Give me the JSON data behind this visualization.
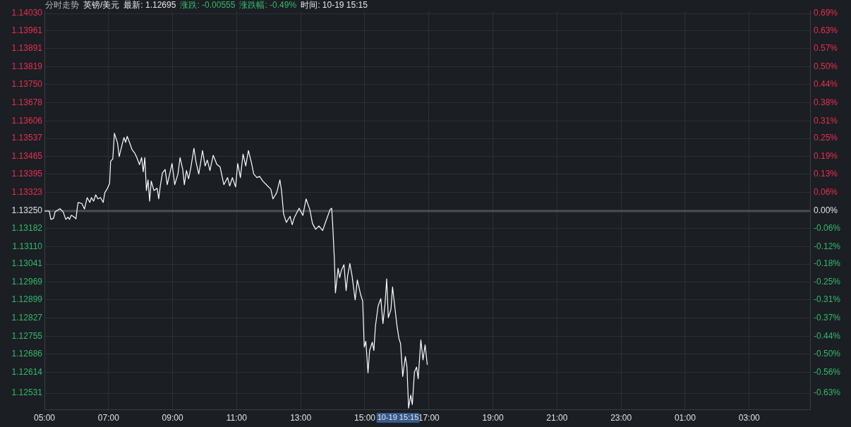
{
  "chart_data": {
    "type": "line",
    "title": "分时走势",
    "subtitle": "英镑/美元",
    "annotations": [
      "最新: 1.12695",
      "涨跌: -0.00555",
      "涨跌幅: -0.49%",
      "时间: 10-19 15:15",
      "10-19 15:15"
    ],
    "x": [
      "--10-19T05:00",
      "--10-19T05:09",
      "--10-19T05:12",
      "--10-19T05:17",
      "--10-19T05:20",
      "--10-19T05:29",
      "--10-19T05:35",
      "--10-19T05:40",
      "--10-19T05:44",
      "--10-19T05:47",
      "--10-19T05:50",
      "--10-19T05:54",
      "--10-19T05:59",
      "--10-19T06:01",
      "--10-19T06:03",
      "--10-19T06:10",
      "--10-19T06:15",
      "--10-19T06:20",
      "--10-19T06:25",
      "--10-19T06:28",
      "--10-19T06:32",
      "--10-19T06:36",
      "--10-19T06:40",
      "--10-19T06:45",
      "--10-19T06:50",
      "--10-19T06:53",
      "--10-19T06:58",
      "--10-19T07:02",
      "--10-19T07:04",
      "--10-19T07:08",
      "--10-19T07:11",
      "--10-19T07:15",
      "--10-19T07:17",
      "--10-19T07:20",
      "--10-19T07:26",
      "--10-19T07:29",
      "--10-19T07:32",
      "--10-19T07:35",
      "--10-19T07:40",
      "--10-19T07:44",
      "--10-19T07:49",
      "--10-19T07:53",
      "--10-19T07:58",
      "--10-19T08:02",
      "--10-19T08:05",
      "--10-19T08:08",
      "--10-19T08:11",
      "--10-19T08:14",
      "--10-19T08:17",
      "--10-19T08:20",
      "--10-19T08:25",
      "--10-19T08:31",
      "--10-19T08:34",
      "--10-19T08:37",
      "--10-19T08:41",
      "--10-19T08:46",
      "--10-19T08:50",
      "--10-19T08:55",
      "--10-19T08:59",
      "--10-19T09:04",
      "--10-19T09:10",
      "--10-19T09:14",
      "--10-19T09:19",
      "--10-19T09:22",
      "--10-19T09:26",
      "--10-19T09:30",
      "--10-19T09:34",
      "--10-19T09:40",
      "--10-19T09:44",
      "--10-19T09:49",
      "--10-19T09:53",
      "--10-19T09:56",
      "--10-19T10:01",
      "--10-19T10:05",
      "--10-19T10:10",
      "--10-19T10:16",
      "--10-19T10:23",
      "--10-19T10:29",
      "--10-19T10:36",
      "--10-19T10:43",
      "--10-19T10:47",
      "--10-19T10:52",
      "--10-19T10:58",
      "--10-19T11:02",
      "--10-19T11:07",
      "--10-19T11:12",
      "--10-19T11:17",
      "--10-19T11:22",
      "--10-19T11:28",
      "--10-19T11:32",
      "--10-19T11:38",
      "--10-19T11:43",
      "--10-19T11:49",
      "--10-19T11:58",
      "--10-19T12:04",
      "--10-19T12:08",
      "--10-19T12:15",
      "--10-19T12:21",
      "--10-19T12:24",
      "--10-19T12:28",
      "--10-19T12:33",
      "--10-19T12:40",
      "--10-19T12:44",
      "--10-19T12:48",
      "--10-19T12:57",
      "--10-19T13:04",
      "--10-19T13:10",
      "--10-19T13:17",
      "--10-19T13:22",
      "--10-19T13:28",
      "--10-19T13:34",
      "--10-19T13:41",
      "--10-19T13:48",
      "--10-19T13:55",
      "--10-19T13:58",
      "--10-19T14:00",
      "--10-19T14:03",
      "--10-19T14:05",
      "--10-19T14:10",
      "--10-19T14:13",
      "--10-19T14:16",
      "--10-19T14:21",
      "--10-19T14:25",
      "--10-19T14:28",
      "--10-19T14:32",
      "--10-19T14:36",
      "--10-19T14:42",
      "--10-19T14:46",
      "--10-19T14:52",
      "--10-19T14:56",
      "--10-19T14:59",
      "--10-19T15:02",
      "--10-19T15:06",
      "--10-19T15:09",
      "--10-19T15:14",
      "--10-19T15:17",
      "--10-19T15:20",
      "--10-19T15:25",
      "--10-19T15:30",
      "--10-19T15:34",
      "--10-19T15:38",
      "--10-19T15:41",
      "--10-19T15:44",
      "--10-19T15:49",
      "--10-19T15:52",
      "--10-19T15:56",
      "--10-19T16:00",
      "--10-19T16:04",
      "--10-19T16:07",
      "--10-19T16:11",
      "--10-19T16:16",
      "--10-19T16:19",
      "--10-19T16:22",
      "--10-19T16:26",
      "--10-19T16:29",
      "--10-19T16:33",
      "--10-19T16:37",
      "--10-19T16:40",
      "--10-19T16:45",
      "--10-19T16:49",
      "--10-19T16:53",
      "--10-19T16:57"
    ],
    "series": [
      {
        "color": "#ffffff",
        "values": [
          1.1325,
          1.1325,
          1.13217,
          1.13221,
          1.13247,
          1.13259,
          1.13247,
          1.13217,
          1.13226,
          1.13217,
          1.13233,
          1.13229,
          1.13219,
          1.13255,
          1.13284,
          1.1328,
          1.13258,
          1.13303,
          1.13284,
          1.13303,
          1.13289,
          1.13314,
          1.13298,
          1.13303,
          1.13284,
          1.13322,
          1.1334,
          1.13359,
          1.13447,
          1.13456,
          1.13557,
          1.13531,
          1.13517,
          1.13465,
          1.13517,
          1.1354,
          1.13521,
          1.13545,
          1.13517,
          1.13493,
          1.13479,
          1.13461,
          1.13433,
          1.13461,
          1.13405,
          1.13461,
          1.13331,
          1.13373,
          1.13289,
          1.13368,
          1.13331,
          1.1334,
          1.13298,
          1.13349,
          1.134,
          1.13414,
          1.13354,
          1.134,
          1.13438,
          1.13354,
          1.13396,
          1.13461,
          1.13414,
          1.13354,
          1.1341,
          1.13377,
          1.13419,
          1.13498,
          1.13442,
          1.13396,
          1.13447,
          1.13489,
          1.13428,
          1.13451,
          1.1341,
          1.1347,
          1.13434,
          1.13424,
          1.13354,
          1.13382,
          1.13349,
          1.13382,
          1.13345,
          1.13438,
          1.13382,
          1.13475,
          1.13428,
          1.13489,
          1.13438,
          1.13396,
          1.13382,
          1.13387,
          1.13368,
          1.13349,
          1.13336,
          1.13298,
          1.13322,
          1.13373,
          1.13331,
          1.13238,
          1.13205,
          1.13229,
          1.13196,
          1.13224,
          1.13261,
          1.13233,
          1.13298,
          1.13256,
          1.13201,
          1.13178,
          1.13191,
          1.13173,
          1.13215,
          1.13256,
          1.13261,
          1.13191,
          1.13061,
          1.12927,
          1.13024,
          1.12987,
          1.13015,
          1.13038,
          1.12936,
          1.12996,
          1.13043,
          1.12996,
          1.12899,
          1.12978,
          1.12922,
          1.12894,
          1.12713,
          1.12736,
          1.12611,
          1.12699,
          1.12732,
          1.12699,
          1.12797,
          1.12876,
          1.12904,
          1.12806,
          1.12885,
          1.12982,
          1.12829,
          1.12862,
          1.1295,
          1.12876,
          1.12801,
          1.12746,
          1.12727,
          1.12597,
          1.12676,
          1.12634,
          1.12472,
          1.12523,
          1.12486,
          1.12615,
          1.12634,
          1.12588,
          1.12741,
          1.12662,
          1.12722,
          1.12643
        ]
      }
    ],
    "xlim": [
      "--10-19T05:00",
      "--10-20T04:54"
    ],
    "xticks": [
      {
        "value": "--10-19T05:00",
        "label": "05:00"
      },
      {
        "value": "--10-19T07:00",
        "label": "07:00"
      },
      {
        "value": "--10-19T09:00",
        "label": "09:00"
      },
      {
        "value": "--10-19T11:00",
        "label": "11:00"
      },
      {
        "value": "--10-19T13:00",
        "label": "13:00"
      },
      {
        "value": "--10-19T15:00",
        "label": "15:00"
      },
      {
        "value": "--10-19T17:00",
        "label": "17:00"
      },
      {
        "value": "--10-19T19:00",
        "label": "19:00"
      },
      {
        "value": "--10-19T21:00",
        "label": "21:00"
      },
      {
        "value": "--10-19T23:00",
        "label": "23:00"
      },
      {
        "value": "--10-20T01:00",
        "label": "01:00"
      },
      {
        "value": "--10-20T03:00",
        "label": "03:00"
      }
    ],
    "ylim": [
      1.12467,
      1.1404
    ],
    "yticks": [
      {
        "value": 1.1403,
        "label": "1.14030"
      },
      1.13961,
      1.13891,
      1.13819,
      {
        "value": 1.1375,
        "label": "1.13750"
      },
      1.13678,
      1.13606,
      1.13537,
      1.13465,
      1.13395,
      1.13323,
      {
        "value": 1.1325,
        "label": "1.13250"
      },
      1.13182,
      {
        "value": 1.1311,
        "label": "1.13110"
      },
      1.13041,
      1.12969,
      1.12899,
      1.12827,
      1.12755,
      1.12686,
      1.12614,
      1.12531
    ],
    "y2lim": [
      -0.6914,
      0.6976
    ],
    "y2ticks": [
      {
        "value": 0.6887,
        "label": "0.69%"
      },
      {
        "value": 0.6278,
        "label": "0.63%"
      },
      {
        "value": 0.566,
        "label": "0.57%"
      },
      {
        "value": 0.5024,
        "label": "0.50%"
      },
      {
        "value": 0.4415,
        "label": "0.44%"
      },
      {
        "value": 0.3779,
        "label": "0.38%"
      },
      {
        "value": 0.3143,
        "label": "0.31%"
      },
      {
        "value": 0.2534,
        "label": "0.25%"
      },
      {
        "value": 0.1898,
        "label": "0.19%"
      },
      {
        "value": 0.128,
        "label": "0.13%"
      },
      {
        "value": 0.0645,
        "label": "0.06%"
      },
      {
        "value": 0,
        "label": "0.00%"
      },
      {
        "value": -0.06,
        "label": "-0.06%"
      },
      {
        "value": -0.1236,
        "label": "-0.12%"
      },
      {
        "value": -0.1845,
        "label": "-0.18%"
      },
      {
        "value": -0.2481,
        "label": "-0.25%"
      },
      {
        "value": -0.3099,
        "label": "-0.31%"
      },
      {
        "value": -0.3735,
        "label": "-0.37%"
      },
      {
        "value": -0.4371,
        "label": "-0.44%"
      },
      {
        "value": -0.498,
        "label": "-0.50%"
      },
      {
        "value": -0.5616,
        "label": "-0.56%"
      },
      {
        "value": -0.6349,
        "label": "-0.63%"
      }
    ],
    "ref_lines": [
      {
        "axis": "y",
        "value": 1.1325,
        "color": "#4b4e55"
      }
    ],
    "grid": true,
    "marker": "none"
  }
}
